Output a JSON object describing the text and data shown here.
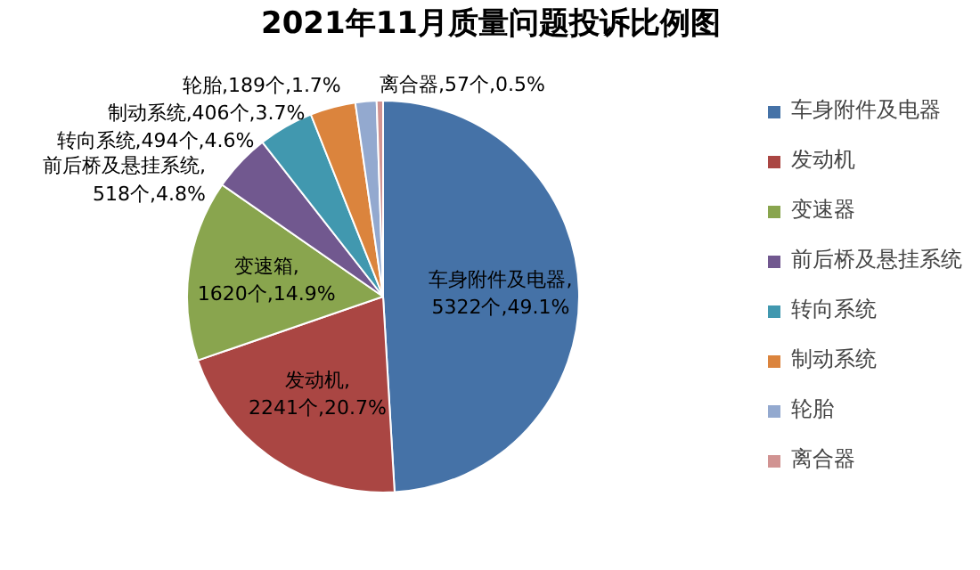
{
  "chart_data": {
    "type": "pie",
    "title": "2021年11月质量问题投诉比例图",
    "categories": [
      "车身附件及电器",
      "发动机",
      "变速器",
      "前后桥及悬挂系统",
      "转向系统",
      "制动系统",
      "轮胎",
      "离合器"
    ],
    "values": [
      5322,
      2241,
      1620,
      518,
      494,
      406,
      189,
      57
    ],
    "colors": [
      "#4572a7",
      "#aa4643",
      "#89a54e",
      "#71588f",
      "#4198af",
      "#db843d",
      "#93a9cf",
      "#d19392"
    ],
    "value_labels": [
      "车身附件及电器,\n5322个,49.1%",
      "发动机,\n2241个,20.7%",
      "变速箱,\n1620个,14.9%",
      "前后桥及悬挂系统,\n518个,4.8%",
      "转向系统,494个,4.6%",
      "制动系统,406个,3.7%",
      "轮胎,189个,1.7%",
      "离合器,57个,0.5%"
    ],
    "legend": "right"
  }
}
